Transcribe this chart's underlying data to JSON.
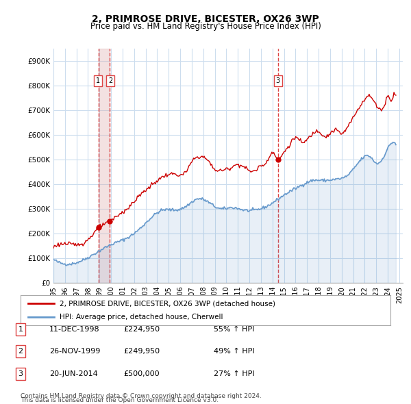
{
  "title": "2, PRIMROSE DRIVE, BICESTER, OX26 3WP",
  "subtitle": "Price paid vs. HM Land Registry's House Price Index (HPI)",
  "legend_line1": "2, PRIMROSE DRIVE, BICESTER, OX26 3WP (detached house)",
  "legend_line2": "HPI: Average price, detached house, Cherwell",
  "footer1": "Contains HM Land Registry data © Crown copyright and database right 2024.",
  "footer2": "This data is licensed under the Open Government Licence v3.0.",
  "transactions": [
    {
      "num": 1,
      "date": "11-DEC-1998",
      "price": 224950,
      "pct": "55%",
      "direction": "↑",
      "ref": "HPI",
      "year_x": 1998.95
    },
    {
      "num": 2,
      "date": "26-NOV-1999",
      "price": 249950,
      "pct": "49%",
      "direction": "↑",
      "ref": "HPI",
      "year_x": 1999.9
    },
    {
      "num": 3,
      "date": "20-JUN-2014",
      "price": 500000,
      "pct": "27%",
      "direction": "↑",
      "ref": "HPI",
      "year_x": 2014.47
    }
  ],
  "red_line_color": "#cc0000",
  "blue_line_color": "#6699cc",
  "vline_color": "#dd4444",
  "vband_color": "#ddaaaa",
  "grid_color": "#ccddee",
  "background_color": "#ffffff",
  "ylim": [
    0,
    950000
  ],
  "xlim_start": 1995.0,
  "xlim_end": 2025.3,
  "yticks": [
    0,
    100000,
    200000,
    300000,
    400000,
    500000,
    600000,
    700000,
    800000,
    900000
  ],
  "ytick_labels": [
    "£0",
    "£100K",
    "£200K",
    "£300K",
    "£400K",
    "£500K",
    "£600K",
    "£700K",
    "£800K",
    "£900K"
  ],
  "xticks": [
    1995,
    1996,
    1997,
    1998,
    1999,
    2000,
    2001,
    2002,
    2003,
    2004,
    2005,
    2006,
    2007,
    2008,
    2009,
    2010,
    2011,
    2012,
    2013,
    2014,
    2015,
    2016,
    2017,
    2018,
    2019,
    2020,
    2021,
    2022,
    2023,
    2024,
    2025
  ]
}
